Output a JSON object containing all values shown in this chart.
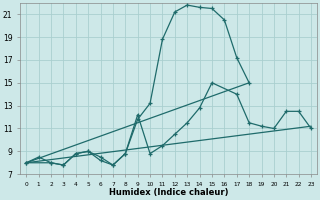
{
  "xlabel": "Humidex (Indice chaleur)",
  "xlim": [
    -0.5,
    23.5
  ],
  "ylim": [
    7,
    22
  ],
  "xticks": [
    0,
    1,
    2,
    3,
    4,
    5,
    6,
    7,
    8,
    9,
    10,
    11,
    12,
    13,
    14,
    15,
    16,
    17,
    18,
    19,
    20,
    21,
    22,
    23
  ],
  "yticks": [
    7,
    9,
    11,
    13,
    15,
    17,
    19,
    21
  ],
  "bg_color": "#cde8e8",
  "grid_color": "#aacfcf",
  "line_color": "#1f6b6b",
  "curve1_x": [
    0,
    1,
    2,
    3,
    4,
    5,
    6,
    7,
    8,
    9,
    10,
    11,
    12,
    13,
    14,
    15,
    16,
    17,
    18
  ],
  "curve1_y": [
    8.0,
    8.5,
    8.0,
    7.8,
    8.8,
    9.0,
    8.2,
    7.8,
    8.8,
    11.8,
    13.2,
    18.8,
    21.2,
    21.8,
    21.6,
    21.5,
    20.5,
    17.2,
    15.0
  ],
  "curve2_x": [
    0,
    2,
    3,
    4,
    5,
    6,
    7,
    8,
    9,
    10,
    11,
    12,
    13,
    14,
    15,
    17,
    18,
    19,
    20,
    21,
    22,
    23
  ],
  "curve2_y": [
    8.0,
    8.0,
    7.8,
    8.8,
    9.0,
    8.5,
    7.8,
    8.8,
    12.2,
    8.8,
    9.5,
    10.5,
    11.5,
    12.8,
    15.0,
    14.0,
    11.5,
    11.2,
    11.0,
    12.5,
    12.5,
    11.0
  ],
  "line3_x": [
    0,
    18
  ],
  "line3_y": [
    8.0,
    15.0
  ],
  "line4_x": [
    0,
    23
  ],
  "line4_y": [
    8.0,
    11.2
  ]
}
